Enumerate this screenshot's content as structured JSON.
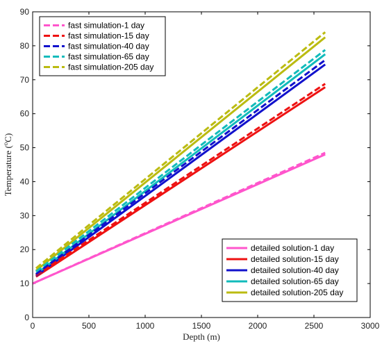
{
  "chart_data": {
    "type": "line",
    "xlabel": "Depth (m)",
    "ylabel_main": "Temperature (",
    "ylabel_sup": "o",
    "ylabel_end": "C)",
    "xlim": [
      0,
      3000
    ],
    "ylim": [
      0,
      90
    ],
    "xticks": [
      0,
      500,
      1000,
      1500,
      2000,
      2500,
      3000
    ],
    "yticks": [
      0,
      10,
      20,
      30,
      40,
      50,
      60,
      70,
      80,
      90
    ],
    "grid": false,
    "legends": [
      {
        "placement": "top-left",
        "style": "dashed",
        "entries": [
          "fast simulation-1 day",
          "fast simulation-15 day",
          "fast simulation-40 day",
          "fast simulation-65 day",
          "fast simulation-205 day"
        ]
      },
      {
        "placement": "bottom-right",
        "style": "solid",
        "entries": [
          "detailed solution-1 day",
          "detailed solution-15 day",
          "detailed solution-40 day",
          "detailed solution-65 day",
          "detailed solution-205 day"
        ]
      }
    ],
    "colors": [
      "#ff55cc",
      "#ee1111",
      "#1111cc",
      "#11bbbb",
      "#bbbb11"
    ],
    "series": [
      {
        "name": "fast simulation-1 day",
        "style": "dashed",
        "color": "#ff55cc",
        "x": [
          0,
          2600
        ],
        "y": [
          10.0,
          48.5
        ]
      },
      {
        "name": "fast simulation-15 day",
        "style": "dashed",
        "color": "#ee1111",
        "x": [
          30,
          2600
        ],
        "y": [
          12.5,
          68.8
        ]
      },
      {
        "name": "fast simulation-40 day",
        "style": "dashed",
        "color": "#1111cc",
        "x": [
          30,
          2600
        ],
        "y": [
          12.8,
          75.8
        ]
      },
      {
        "name": "fast simulation-65 day",
        "style": "dashed",
        "color": "#11bbbb",
        "x": [
          30,
          2600
        ],
        "y": [
          13.5,
          78.8
        ]
      },
      {
        "name": "fast simulation-205 day",
        "style": "dashed",
        "color": "#bbbb11",
        "x": [
          30,
          2600
        ],
        "y": [
          14.5,
          84.0
        ]
      },
      {
        "name": "detailed solution-1 day",
        "style": "solid",
        "color": "#ff55cc",
        "x": [
          0,
          2600
        ],
        "y": [
          10.0,
          48.0
        ]
      },
      {
        "name": "detailed solution-15 day",
        "style": "solid",
        "color": "#ee1111",
        "x": [
          30,
          2600
        ],
        "y": [
          12.0,
          67.8
        ]
      },
      {
        "name": "detailed solution-40 day",
        "style": "solid",
        "color": "#1111cc",
        "x": [
          30,
          2600
        ],
        "y": [
          12.3,
          74.5
        ]
      },
      {
        "name": "detailed solution-65 day",
        "style": "solid",
        "color": "#11bbbb",
        "x": [
          30,
          2600
        ],
        "y": [
          12.8,
          77.5
        ]
      },
      {
        "name": "detailed solution-205 day",
        "style": "solid",
        "color": "#bbbb11",
        "x": [
          30,
          2600
        ],
        "y": [
          13.8,
          82.5
        ]
      }
    ]
  }
}
